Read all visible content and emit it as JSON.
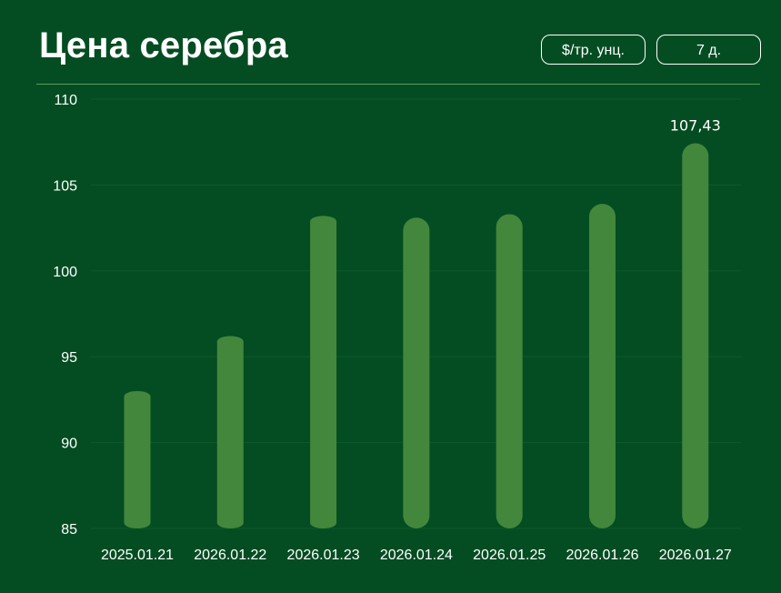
{
  "header": {
    "title": "Цена серебра",
    "unit_button": "$/тр. унц.",
    "range_button": "7 д."
  },
  "colors": {
    "background": "#044d22",
    "bar": "#43873c",
    "grid": "#0c5a2b",
    "divider": "#5a9a5e"
  },
  "chart_data": {
    "type": "bar",
    "title": "Цена серебра",
    "categories": [
      "2025.01.21",
      "2026.01.22",
      "2026.01.23",
      "2026.01.24",
      "2026.01.25",
      "2026.01.26",
      "2026.01.27"
    ],
    "values": [
      93.0,
      96.2,
      103.2,
      103.1,
      103.3,
      103.9,
      107.43
    ],
    "data_labels": [
      {
        "index": 6,
        "text": "107,43"
      }
    ],
    "yticks": [
      85,
      90,
      95,
      100,
      105,
      110
    ],
    "ylim": [
      85,
      110
    ],
    "grid": true,
    "xlabel": "",
    "ylabel": ""
  }
}
